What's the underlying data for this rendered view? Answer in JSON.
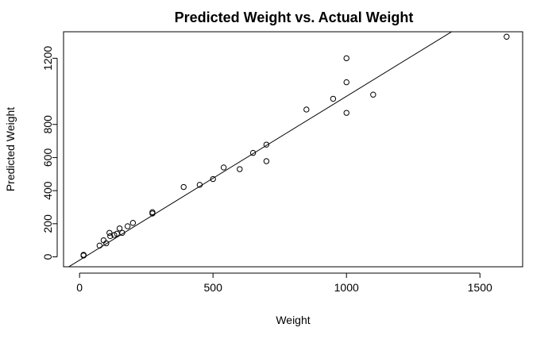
{
  "chart_data": {
    "type": "scatter",
    "title": "Predicted Weight vs. Actual Weight",
    "xlabel": "Weight",
    "ylabel": "Predicted Weight",
    "xlim": [
      -60,
      1660
    ],
    "ylim": [
      -60,
      1360
    ],
    "x_ticks": [
      0,
      500,
      1000,
      1500
    ],
    "y_ticks": [
      0,
      200,
      400,
      600,
      800,
      1200
    ],
    "grid": false,
    "legend": "none",
    "fit_line": {
      "intercept": -20,
      "slope": 0.99
    },
    "points": [
      {
        "x": 15,
        "y": 10
      },
      {
        "x": 15,
        "y": 12
      },
      {
        "x": 15,
        "y": 8
      },
      {
        "x": 75,
        "y": 68
      },
      {
        "x": 90,
        "y": 100
      },
      {
        "x": 100,
        "y": 82
      },
      {
        "x": 112,
        "y": 145
      },
      {
        "x": 115,
        "y": 125
      },
      {
        "x": 130,
        "y": 132
      },
      {
        "x": 140,
        "y": 140
      },
      {
        "x": 150,
        "y": 172
      },
      {
        "x": 160,
        "y": 145
      },
      {
        "x": 180,
        "y": 185
      },
      {
        "x": 200,
        "y": 205
      },
      {
        "x": 273,
        "y": 262
      },
      {
        "x": 273,
        "y": 270
      },
      {
        "x": 390,
        "y": 422
      },
      {
        "x": 450,
        "y": 435
      },
      {
        "x": 500,
        "y": 470
      },
      {
        "x": 540,
        "y": 540
      },
      {
        "x": 600,
        "y": 530
      },
      {
        "x": 650,
        "y": 628
      },
      {
        "x": 700,
        "y": 578
      },
      {
        "x": 700,
        "y": 678
      },
      {
        "x": 850,
        "y": 890
      },
      {
        "x": 950,
        "y": 955
      },
      {
        "x": 1000,
        "y": 1200
      },
      {
        "x": 1000,
        "y": 1055
      },
      {
        "x": 1000,
        "y": 870
      },
      {
        "x": 1100,
        "y": 980
      },
      {
        "x": 1600,
        "y": 1330
      }
    ]
  }
}
